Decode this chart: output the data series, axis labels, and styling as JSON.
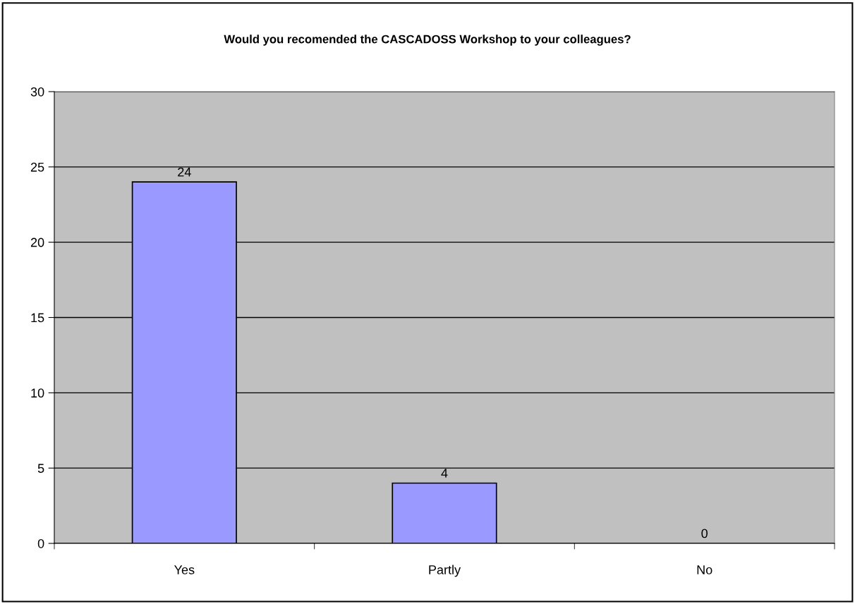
{
  "chart_data": {
    "type": "bar",
    "title": "Would you recomended the CASCADOSS Workshop to your colleagues?",
    "categories": [
      "Yes",
      "Partly",
      "No"
    ],
    "series": [
      {
        "color": "#9999ff",
        "values": [
          24,
          4,
          0
        ]
      }
    ],
    "ylim": [
      0,
      30
    ],
    "yticks": [
      0,
      5,
      10,
      15,
      20,
      25,
      30
    ],
    "grid": "y",
    "data_labels": true
  }
}
